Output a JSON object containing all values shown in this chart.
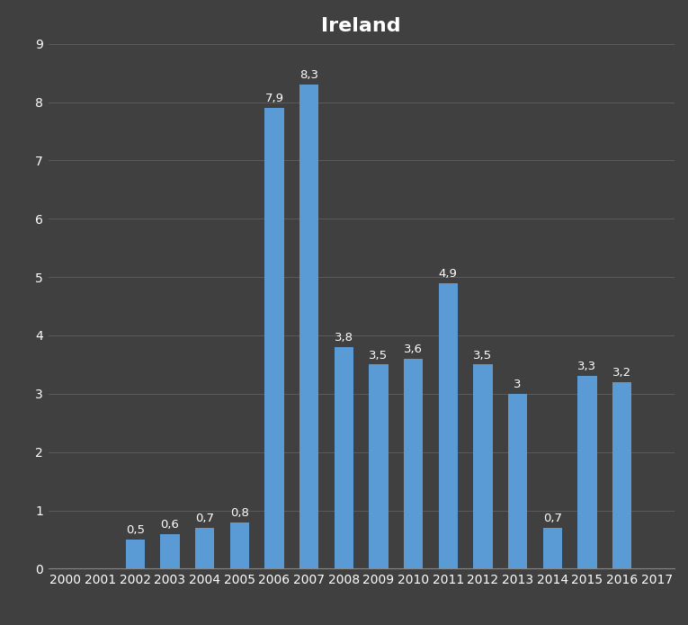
{
  "title": "Ireland",
  "years": [
    2000,
    2001,
    2002,
    2003,
    2004,
    2005,
    2006,
    2007,
    2008,
    2009,
    2010,
    2011,
    2012,
    2013,
    2014,
    2015,
    2016,
    2017
  ],
  "values": [
    0,
    0,
    0.5,
    0.6,
    0.7,
    0.8,
    7.9,
    8.3,
    3.8,
    3.5,
    3.6,
    4.9,
    3.5,
    3.0,
    0.7,
    3.3,
    3.2,
    0
  ],
  "bar_color": "#5b9bd5",
  "background_color": "#404040",
  "plot_bg_color": "#404040",
  "text_color": "#ffffff",
  "grid_color": "#606060",
  "ylim": [
    0,
    9
  ],
  "yticks": [
    0,
    1,
    2,
    3,
    4,
    5,
    6,
    7,
    8,
    9
  ],
  "title_fontsize": 16,
  "tick_fontsize": 10,
  "label_fontsize": 9.5,
  "bar_width": 0.55
}
